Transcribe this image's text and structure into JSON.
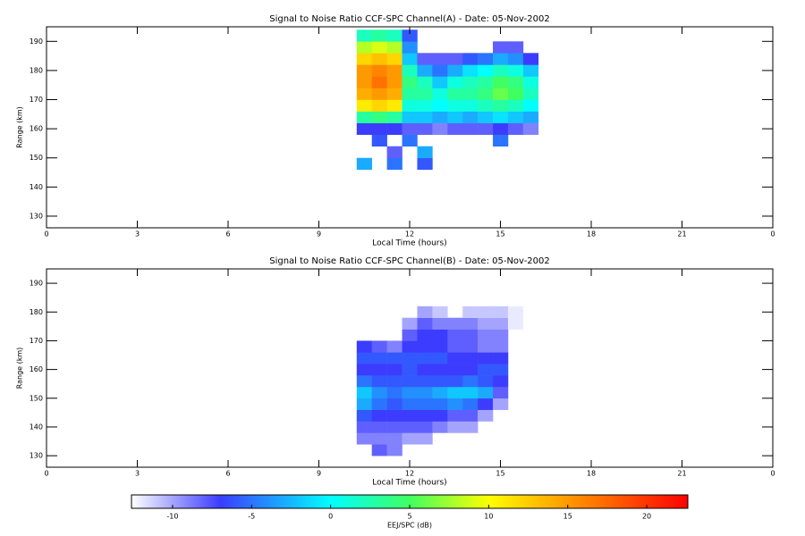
{
  "chart_data": [
    {
      "type": "heatmap",
      "title": "Signal to Noise Ratio CCF-SPC Channel(A) - Date: 05-Nov-2002",
      "xlabel": "Local Time (hours)",
      "ylabel": "Range (km)",
      "xlim": [
        0,
        24
      ],
      "xticks": [
        0,
        3,
        6,
        9,
        12,
        15,
        18,
        21,
        {
          "value": 24,
          "label": "0"
        }
      ],
      "ylim": [
        126,
        195
      ],
      "yticks": [
        130,
        140,
        150,
        160,
        170,
        180,
        190
      ],
      "x": [
        10.5,
        11,
        11.5,
        12,
        12.5,
        13,
        13.5,
        14,
        14.5,
        15,
        15.5,
        16
      ],
      "y": [
        148,
        152,
        156,
        160,
        164,
        168,
        172,
        176,
        180,
        184,
        188,
        192
      ],
      "z": [
        [
          -3,
          null,
          -5,
          null,
          -6,
          null,
          null,
          null,
          null,
          null,
          null,
          null
        ],
        [
          null,
          null,
          -8,
          null,
          -3,
          null,
          null,
          null,
          null,
          null,
          null,
          null
        ],
        [
          null,
          -6,
          null,
          -5,
          null,
          null,
          null,
          null,
          null,
          -5,
          null,
          null
        ],
        [
          -7,
          -7,
          -7,
          -8,
          -8,
          -9,
          -8,
          -8,
          -8,
          -7,
          -8,
          -9
        ],
        [
          3,
          4,
          3,
          -2,
          -2,
          -3,
          -2,
          -3,
          -2,
          -1,
          -2,
          -3
        ],
        [
          11,
          12,
          11,
          1,
          1,
          0,
          1,
          1,
          2,
          3,
          2,
          0
        ],
        [
          14,
          15,
          14,
          3,
          3,
          1,
          3,
          3,
          4,
          6,
          5,
          2
        ],
        [
          15,
          17,
          15,
          4,
          2,
          -2,
          1,
          2,
          3,
          5,
          4,
          1
        ],
        [
          15,
          16,
          15,
          2,
          -3,
          -5,
          -3,
          -1,
          0,
          2,
          1,
          -2
        ],
        [
          12,
          13,
          12,
          -2,
          -8,
          -8,
          -8,
          -6,
          -5,
          -3,
          -4,
          -7
        ],
        [
          8,
          9,
          8,
          -4,
          null,
          null,
          null,
          null,
          null,
          -8,
          -8,
          null
        ],
        [
          2,
          3,
          2,
          -6,
          null,
          null,
          null,
          null,
          null,
          null,
          null,
          null
        ]
      ]
    },
    {
      "type": "heatmap",
      "title": "Signal to Noise Ratio CCF-SPC Channel(B) - Date: 05-Nov-2002",
      "xlabel": "Local Time (hours)",
      "ylabel": "Range (km)",
      "xlim": [
        0,
        24
      ],
      "xticks": [
        0,
        3,
        6,
        9,
        12,
        15,
        18,
        21,
        {
          "value": 24,
          "label": "0"
        }
      ],
      "ylim": [
        126,
        195
      ],
      "yticks": [
        130,
        140,
        150,
        160,
        170,
        180,
        190
      ],
      "x": [
        10.5,
        11,
        11.5,
        12,
        12.5,
        13,
        13.5,
        14,
        14.5,
        15,
        15.5
      ],
      "y": [
        132,
        136,
        140,
        144,
        148,
        152,
        156,
        160,
        164,
        168,
        172,
        176,
        180
      ],
      "z": [
        [
          null,
          -8,
          -9,
          null,
          null,
          null,
          null,
          null,
          null,
          null,
          null
        ],
        [
          -9,
          -9,
          -9,
          -10,
          -10,
          null,
          null,
          null,
          null,
          null,
          null
        ],
        [
          -8,
          -8,
          -8,
          -8,
          -8,
          -9,
          -10,
          -10,
          null,
          null,
          null
        ],
        [
          -6,
          -7,
          -7,
          -7,
          -7,
          -7,
          -8,
          -8,
          -10,
          null,
          null
        ],
        [
          -3,
          -5,
          -6,
          -5,
          -5,
          -5,
          -4,
          -5,
          -7,
          -10,
          null
        ],
        [
          -2,
          -4,
          -5,
          -4,
          -4,
          -3,
          -2,
          -2,
          -3,
          -8,
          null
        ],
        [
          -5,
          -6,
          -6,
          -6,
          -6,
          -6,
          -6,
          -5,
          -6,
          -7,
          null
        ],
        [
          -7,
          -7,
          -7,
          -6,
          -7,
          -7,
          -7,
          -7,
          -6,
          -6,
          null
        ],
        [
          -6,
          -6,
          -6,
          -6,
          -6,
          -6,
          -7,
          -7,
          -7,
          -7,
          null
        ],
        [
          -7,
          -8,
          -9,
          -7,
          -7,
          -7,
          -8,
          -8,
          -9,
          -9,
          null
        ],
        [
          null,
          null,
          null,
          -8,
          -7,
          -7,
          -8,
          -8,
          -9,
          -9,
          null
        ],
        [
          null,
          null,
          null,
          -10,
          -8,
          -9,
          -9,
          -9,
          -10,
          -10,
          -12
        ],
        [
          null,
          null,
          null,
          null,
          -10,
          -11,
          null,
          -11,
          -11,
          -11,
          -12
        ]
      ]
    }
  ],
  "colorbar": {
    "label": "EEJ/SPC (dB)",
    "lim": [
      -12.6,
      22.6
    ],
    "ticks": [
      -10,
      -5,
      0,
      5,
      10,
      15,
      20
    ],
    "colormap": {
      "values": [
        -12.6,
        -7,
        0,
        5,
        10,
        15,
        22.6
      ],
      "colors": [
        "#ffffff",
        "#3c3cff",
        "#00ffff",
        "#40ff60",
        "#ffff00",
        "#ff9900",
        "#ff0000"
      ]
    }
  }
}
